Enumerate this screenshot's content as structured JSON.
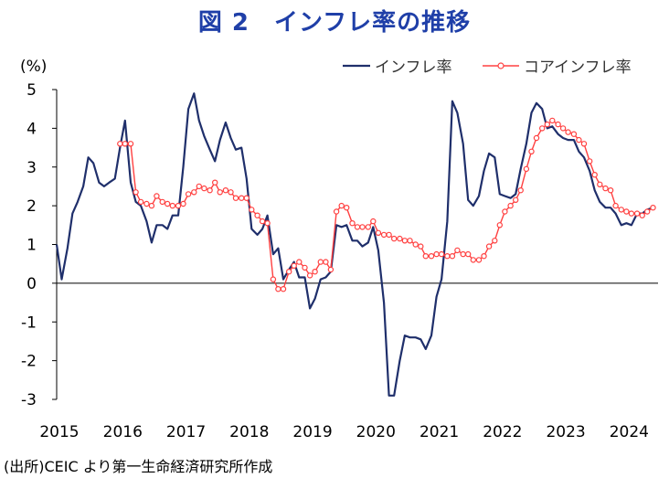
{
  "chart_data": {
    "type": "line",
    "title": "図 2　インフレ率の推移",
    "ylabel": "(%)",
    "ylim": [
      -3,
      5
    ],
    "yticks": [
      5,
      4,
      3,
      2,
      1,
      0,
      -1,
      -2,
      -3
    ],
    "xlim": [
      2015.0,
      2024.5
    ],
    "xticks": [
      "2015",
      "2016",
      "2017",
      "2018",
      "2019",
      "2020",
      "2021",
      "2022",
      "2023",
      "2024"
    ],
    "legend_position": "top-right",
    "source": "(出所)CEIC より第一生命経済研究所作成",
    "series": [
      {
        "name": "インフレ率",
        "color": "#1f2f6b",
        "marker": "none",
        "points": [
          [
            2015.0,
            1.0
          ],
          [
            2015.08,
            0.1
          ],
          [
            2015.17,
            0.9
          ],
          [
            2015.25,
            1.8
          ],
          [
            2015.33,
            2.1
          ],
          [
            2015.42,
            2.5
          ],
          [
            2015.5,
            3.25
          ],
          [
            2015.58,
            3.1
          ],
          [
            2015.67,
            2.6
          ],
          [
            2015.75,
            2.5
          ],
          [
            2015.83,
            2.6
          ],
          [
            2015.92,
            2.7
          ],
          [
            2016.0,
            3.5
          ],
          [
            2016.08,
            4.2
          ],
          [
            2016.17,
            2.6
          ],
          [
            2016.25,
            2.1
          ],
          [
            2016.33,
            2.0
          ],
          [
            2016.42,
            1.6
          ],
          [
            2016.5,
            1.05
          ],
          [
            2016.58,
            1.5
          ],
          [
            2016.67,
            1.5
          ],
          [
            2016.75,
            1.4
          ],
          [
            2016.83,
            1.75
          ],
          [
            2016.92,
            1.75
          ],
          [
            2017.0,
            3.0
          ],
          [
            2017.08,
            4.5
          ],
          [
            2017.17,
            4.9
          ],
          [
            2017.25,
            4.2
          ],
          [
            2017.33,
            3.8
          ],
          [
            2017.42,
            3.45
          ],
          [
            2017.5,
            3.15
          ],
          [
            2017.58,
            3.7
          ],
          [
            2017.67,
            4.15
          ],
          [
            2017.75,
            3.75
          ],
          [
            2017.83,
            3.45
          ],
          [
            2017.92,
            3.5
          ],
          [
            2018.0,
            2.7
          ],
          [
            2018.08,
            1.4
          ],
          [
            2018.17,
            1.25
          ],
          [
            2018.25,
            1.4
          ],
          [
            2018.33,
            1.75
          ],
          [
            2018.42,
            0.75
          ],
          [
            2018.5,
            0.9
          ],
          [
            2018.58,
            0.1
          ],
          [
            2018.67,
            0.35
          ],
          [
            2018.75,
            0.55
          ],
          [
            2018.83,
            0.15
          ],
          [
            2018.92,
            0.15
          ],
          [
            2019.0,
            -0.65
          ],
          [
            2019.08,
            -0.4
          ],
          [
            2019.17,
            0.1
          ],
          [
            2019.25,
            0.15
          ],
          [
            2019.33,
            0.3
          ],
          [
            2019.42,
            1.5
          ],
          [
            2019.5,
            1.45
          ],
          [
            2019.58,
            1.5
          ],
          [
            2019.67,
            1.1
          ],
          [
            2019.75,
            1.1
          ],
          [
            2019.83,
            0.95
          ],
          [
            2019.92,
            1.05
          ],
          [
            2020.0,
            1.45
          ],
          [
            2020.08,
            0.85
          ],
          [
            2020.17,
            -0.5
          ],
          [
            2020.25,
            -2.9
          ],
          [
            2020.33,
            -2.9
          ],
          [
            2020.42,
            -2.0
          ],
          [
            2020.5,
            -1.35
          ],
          [
            2020.58,
            -1.4
          ],
          [
            2020.67,
            -1.4
          ],
          [
            2020.75,
            -1.45
          ],
          [
            2020.83,
            -1.7
          ],
          [
            2020.92,
            -1.35
          ],
          [
            2021.0,
            -0.35
          ],
          [
            2021.08,
            0.1
          ],
          [
            2021.17,
            1.6
          ],
          [
            2021.25,
            4.7
          ],
          [
            2021.33,
            4.4
          ],
          [
            2021.42,
            3.6
          ],
          [
            2021.5,
            2.15
          ],
          [
            2021.58,
            2.0
          ],
          [
            2021.67,
            2.25
          ],
          [
            2021.75,
            2.9
          ],
          [
            2021.83,
            3.35
          ],
          [
            2021.92,
            3.25
          ],
          [
            2022.0,
            2.3
          ],
          [
            2022.08,
            2.25
          ],
          [
            2022.17,
            2.2
          ],
          [
            2022.25,
            2.3
          ],
          [
            2022.33,
            2.95
          ],
          [
            2022.42,
            3.6
          ],
          [
            2022.5,
            4.4
          ],
          [
            2022.58,
            4.65
          ],
          [
            2022.67,
            4.5
          ],
          [
            2022.75,
            4.0
          ],
          [
            2022.83,
            4.05
          ],
          [
            2022.92,
            3.85
          ],
          [
            2023.0,
            3.75
          ],
          [
            2023.08,
            3.7
          ],
          [
            2023.17,
            3.7
          ],
          [
            2023.25,
            3.4
          ],
          [
            2023.33,
            3.25
          ],
          [
            2023.42,
            2.9
          ],
          [
            2023.5,
            2.4
          ],
          [
            2023.58,
            2.1
          ],
          [
            2023.67,
            1.95
          ],
          [
            2023.75,
            1.95
          ],
          [
            2023.83,
            1.8
          ],
          [
            2023.92,
            1.5
          ],
          [
            2024.0,
            1.55
          ],
          [
            2024.08,
            1.5
          ],
          [
            2024.17,
            1.8
          ],
          [
            2024.25,
            1.8
          ],
          [
            2024.33,
            1.9
          ],
          [
            2024.42,
            1.95
          ]
        ]
      },
      {
        "name": "コアインフレ率",
        "color": "#ff4040",
        "marker": "circle",
        "points": [
          [
            2016.0,
            3.6
          ],
          [
            2016.08,
            3.6
          ],
          [
            2016.17,
            3.6
          ],
          [
            2016.25,
            2.35
          ],
          [
            2016.33,
            2.1
          ],
          [
            2016.42,
            2.05
          ],
          [
            2016.5,
            2.0
          ],
          [
            2016.58,
            2.25
          ],
          [
            2016.67,
            2.1
          ],
          [
            2016.75,
            2.05
          ],
          [
            2016.83,
            2.0
          ],
          [
            2016.92,
            2.0
          ],
          [
            2017.0,
            2.05
          ],
          [
            2017.08,
            2.3
          ],
          [
            2017.17,
            2.35
          ],
          [
            2017.25,
            2.5
          ],
          [
            2017.33,
            2.45
          ],
          [
            2017.42,
            2.4
          ],
          [
            2017.5,
            2.6
          ],
          [
            2017.58,
            2.35
          ],
          [
            2017.67,
            2.4
          ],
          [
            2017.75,
            2.35
          ],
          [
            2017.83,
            2.2
          ],
          [
            2017.92,
            2.2
          ],
          [
            2018.0,
            2.2
          ],
          [
            2018.08,
            1.9
          ],
          [
            2018.17,
            1.75
          ],
          [
            2018.25,
            1.6
          ],
          [
            2018.33,
            1.55
          ],
          [
            2018.42,
            0.1
          ],
          [
            2018.5,
            -0.15
          ],
          [
            2018.58,
            -0.15
          ],
          [
            2018.67,
            0.3
          ],
          [
            2018.75,
            0.45
          ],
          [
            2018.83,
            0.55
          ],
          [
            2018.92,
            0.4
          ],
          [
            2019.0,
            0.2
          ],
          [
            2019.08,
            0.3
          ],
          [
            2019.17,
            0.55
          ],
          [
            2019.25,
            0.55
          ],
          [
            2019.33,
            0.35
          ],
          [
            2019.42,
            1.85
          ],
          [
            2019.5,
            2.0
          ],
          [
            2019.58,
            1.95
          ],
          [
            2019.67,
            1.55
          ],
          [
            2019.75,
            1.45
          ],
          [
            2019.83,
            1.45
          ],
          [
            2019.92,
            1.45
          ],
          [
            2020.0,
            1.6
          ],
          [
            2020.08,
            1.3
          ],
          [
            2020.17,
            1.25
          ],
          [
            2020.25,
            1.25
          ],
          [
            2020.33,
            1.15
          ],
          [
            2020.42,
            1.15
          ],
          [
            2020.5,
            1.1
          ],
          [
            2020.58,
            1.1
          ],
          [
            2020.67,
            1.0
          ],
          [
            2020.75,
            0.95
          ],
          [
            2020.83,
            0.7
          ],
          [
            2020.92,
            0.7
          ],
          [
            2021.0,
            0.75
          ],
          [
            2021.08,
            0.75
          ],
          [
            2021.17,
            0.7
          ],
          [
            2021.25,
            0.7
          ],
          [
            2021.33,
            0.85
          ],
          [
            2021.42,
            0.75
          ],
          [
            2021.5,
            0.75
          ],
          [
            2021.58,
            0.6
          ],
          [
            2021.67,
            0.6
          ],
          [
            2021.75,
            0.7
          ],
          [
            2021.83,
            0.95
          ],
          [
            2021.92,
            1.1
          ],
          [
            2022.0,
            1.5
          ],
          [
            2022.08,
            1.85
          ],
          [
            2022.17,
            2.0
          ],
          [
            2022.25,
            2.15
          ],
          [
            2022.33,
            2.4
          ],
          [
            2022.42,
            2.95
          ],
          [
            2022.5,
            3.4
          ],
          [
            2022.58,
            3.75
          ],
          [
            2022.67,
            4.0
          ],
          [
            2022.75,
            4.1
          ],
          [
            2022.83,
            4.2
          ],
          [
            2022.92,
            4.1
          ],
          [
            2023.0,
            4.0
          ],
          [
            2023.08,
            3.9
          ],
          [
            2023.17,
            3.85
          ],
          [
            2023.25,
            3.7
          ],
          [
            2023.33,
            3.6
          ],
          [
            2023.42,
            3.15
          ],
          [
            2023.5,
            2.8
          ],
          [
            2023.58,
            2.55
          ],
          [
            2023.67,
            2.45
          ],
          [
            2023.75,
            2.4
          ],
          [
            2023.83,
            2.0
          ],
          [
            2023.92,
            1.9
          ],
          [
            2024.0,
            1.85
          ],
          [
            2024.08,
            1.8
          ],
          [
            2024.17,
            1.8
          ],
          [
            2024.25,
            1.75
          ],
          [
            2024.33,
            1.85
          ],
          [
            2024.42,
            1.95
          ]
        ]
      }
    ]
  }
}
